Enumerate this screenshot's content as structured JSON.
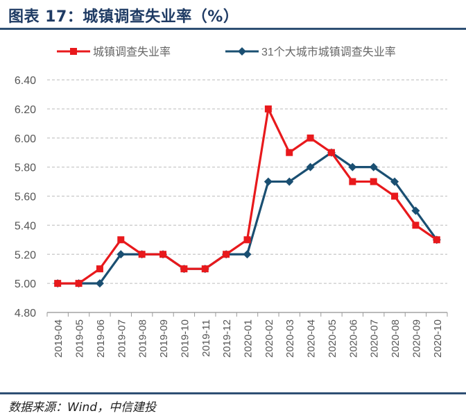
{
  "header": {
    "title": "图表 17：城镇调查失业率（%）"
  },
  "footer": {
    "source": "数据来源：Wind，中信建投"
  },
  "chart_data": {
    "type": "line",
    "title": "",
    "xlabel": "",
    "ylabel": "",
    "ylim": [
      4.8,
      6.4
    ],
    "yticks": [
      "4.80",
      "5.00",
      "5.20",
      "5.40",
      "5.60",
      "5.80",
      "6.00",
      "6.20",
      "6.40"
    ],
    "grid": true,
    "legend_position": "top",
    "categories": [
      "2019-04",
      "2019-05",
      "2019-06",
      "2019-07",
      "2019-08",
      "2019-09",
      "2019-10",
      "2019-11",
      "2019-12",
      "2020-01",
      "2020-02",
      "2020-03",
      "2020-04",
      "2020-05",
      "2020-06",
      "2020-07",
      "2020-08",
      "2020-09",
      "2020-10"
    ],
    "series": [
      {
        "name": "城镇调查失业率",
        "color": "#e8191c",
        "marker": "square",
        "values": [
          5.0,
          5.0,
          5.1,
          5.3,
          5.2,
          5.2,
          5.1,
          5.1,
          5.2,
          5.3,
          6.2,
          5.9,
          6.0,
          5.9,
          5.7,
          5.7,
          5.6,
          5.4,
          5.3
        ]
      },
      {
        "name": "31个大城市城镇调查失业率",
        "color": "#1a4f72",
        "marker": "diamond",
        "values": [
          5.0,
          5.0,
          5.0,
          5.2,
          5.2,
          5.2,
          5.1,
          5.1,
          5.2,
          5.2,
          5.7,
          5.7,
          5.8,
          5.9,
          5.8,
          5.8,
          5.7,
          5.5,
          5.3
        ]
      }
    ]
  }
}
